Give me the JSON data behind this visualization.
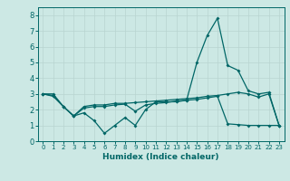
{
  "xlabel": "Humidex (Indice chaleur)",
  "bg_color": "#cce8e4",
  "grid_color": "#b8d4d0",
  "line_color": "#006666",
  "xlim": [
    -0.5,
    23.5
  ],
  "ylim": [
    0,
    8.5
  ],
  "xticks": [
    0,
    1,
    2,
    3,
    4,
    5,
    6,
    7,
    8,
    9,
    10,
    11,
    12,
    13,
    14,
    15,
    16,
    17,
    18,
    19,
    20,
    21,
    22,
    23
  ],
  "yticks": [
    0,
    1,
    2,
    3,
    4,
    5,
    6,
    7,
    8
  ],
  "line1_x": [
    0,
    1,
    2,
    3,
    4,
    5,
    6,
    7,
    8,
    9,
    10,
    11,
    12,
    13,
    14,
    15,
    16,
    17,
    18,
    19,
    20,
    21,
    22,
    23
  ],
  "line1_y": [
    3.0,
    3.0,
    2.2,
    1.6,
    1.8,
    1.3,
    0.5,
    1.0,
    1.5,
    1.0,
    2.0,
    2.5,
    2.5,
    2.5,
    2.6,
    5.0,
    6.7,
    7.8,
    4.8,
    4.5,
    3.2,
    3.0,
    3.1,
    1.0
  ],
  "line2_x": [
    0,
    1,
    2,
    3,
    4,
    5,
    6,
    7,
    8,
    9,
    10,
    11,
    12,
    13,
    14,
    15,
    16,
    17,
    18,
    19,
    20,
    21,
    22,
    23
  ],
  "line2_y": [
    3.0,
    2.9,
    2.2,
    1.6,
    2.2,
    2.3,
    2.3,
    2.4,
    2.4,
    2.45,
    2.5,
    2.55,
    2.6,
    2.65,
    2.7,
    2.75,
    2.85,
    2.9,
    3.0,
    3.1,
    3.0,
    2.8,
    3.0,
    1.0
  ],
  "line3_x": [
    0,
    1,
    2,
    3,
    4,
    5,
    6,
    7,
    8,
    9,
    10,
    11,
    12,
    13,
    14,
    15,
    16,
    17,
    18,
    19,
    20,
    21,
    22,
    23
  ],
  "line3_y": [
    3.0,
    2.85,
    2.2,
    1.6,
    2.1,
    2.2,
    2.2,
    2.3,
    2.35,
    1.9,
    2.3,
    2.4,
    2.45,
    2.55,
    2.6,
    2.65,
    2.75,
    2.85,
    1.1,
    1.05,
    1.0,
    1.0,
    1.0,
    1.0
  ]
}
